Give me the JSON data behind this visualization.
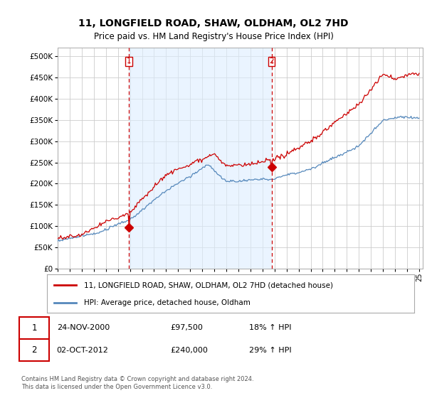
{
  "title": "11, LONGFIELD ROAD, SHAW, OLDHAM, OL2 7HD",
  "subtitle": "Price paid vs. HM Land Registry's House Price Index (HPI)",
  "property_label": "11, LONGFIELD ROAD, SHAW, OLDHAM, OL2 7HD (detached house)",
  "hpi_label": "HPI: Average price, detached house, Oldham",
  "transaction1_date": "24-NOV-2000",
  "transaction1_price": "£97,500",
  "transaction1_hpi": "18% ↑ HPI",
  "transaction2_date": "02-OCT-2012",
  "transaction2_price": "£240,000",
  "transaction2_hpi": "29% ↑ HPI",
  "footer": "Contains HM Land Registry data © Crown copyright and database right 2024.\nThis data is licensed under the Open Government Licence v3.0.",
  "property_color": "#cc0000",
  "hpi_color": "#5588bb",
  "shade_color": "#ddeeff",
  "vline_color": "#cc0000",
  "background_color": "#ffffff",
  "grid_color": "#cccccc",
  "ylim": [
    0,
    520000
  ],
  "yticks": [
    0,
    50000,
    100000,
    150000,
    200000,
    250000,
    300000,
    350000,
    400000,
    450000,
    500000
  ],
  "vline1_x": 2000.9,
  "vline2_x": 2012.75,
  "dot1_x": 2000.9,
  "dot1_y": 97500,
  "dot2_x": 2012.75,
  "dot2_y": 240000,
  "xmin": 1995.0,
  "xmax": 2025.3
}
